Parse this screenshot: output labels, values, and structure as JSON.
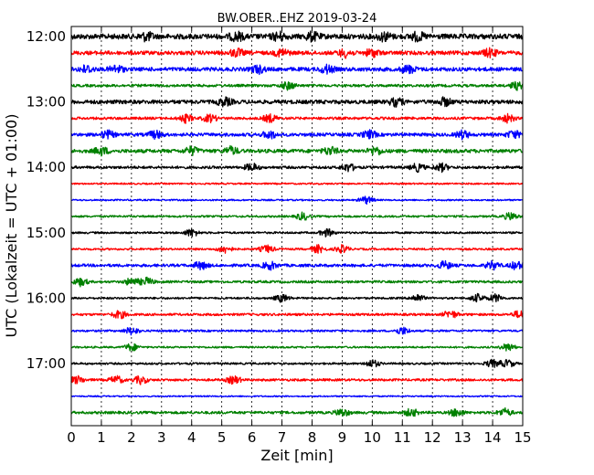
{
  "chart_data": {
    "type": "line",
    "title": "BW.OBER..EHZ 2019-03-24",
    "xlabel": "Zeit  [min]",
    "ylabel": "UTC (Lokalzeit = UTC + 01:00)",
    "xlim": [
      0,
      15
    ],
    "x_ticks": [
      "0",
      "1",
      "2",
      "3",
      "4",
      "5",
      "6",
      "7",
      "8",
      "9",
      "10",
      "11",
      "12",
      "13",
      "14",
      "15"
    ],
    "y_ticks": [
      "12:00",
      "13:00",
      "14:00",
      "15:00",
      "16:00",
      "17:00"
    ],
    "trace_colors": [
      "#000000",
      "#ff0000",
      "#0000ff",
      "#008000"
    ],
    "grid": "vertical dotted",
    "legend": "none",
    "series": [
      {
        "start": "12:00",
        "color": "#000000",
        "amplitude": 0.4,
        "bursts": [
          2.5,
          5.5,
          6.9,
          8.0,
          10.4,
          11.5
        ]
      },
      {
        "start": "12:15",
        "color": "#ff0000",
        "amplitude": 0.3,
        "bursts": [
          5.5,
          7.0,
          9.1,
          10.0,
          13.9
        ]
      },
      {
        "start": "12:30",
        "color": "#0000ff",
        "amplitude": 0.3,
        "bursts": [
          0.5,
          1.5,
          6.2,
          8.5,
          11.2
        ]
      },
      {
        "start": "12:45",
        "color": "#008000",
        "amplitude": 0.2,
        "bursts": [
          7.2,
          14.8
        ]
      },
      {
        "start": "13:00",
        "color": "#000000",
        "amplitude": 0.3,
        "bursts": [
          5.1,
          10.8,
          12.4
        ]
      },
      {
        "start": "13:15",
        "color": "#ff0000",
        "amplitude": 0.2,
        "bursts": [
          3.8,
          4.6,
          6.6,
          14.5
        ]
      },
      {
        "start": "13:30",
        "color": "#0000ff",
        "amplitude": 0.25,
        "bursts": [
          1.2,
          2.8,
          6.6,
          9.9,
          13.0,
          14.7
        ]
      },
      {
        "start": "13:45",
        "color": "#008000",
        "amplitude": 0.28,
        "bursts": [
          1.0,
          4.0,
          5.3,
          8.6,
          10.1
        ]
      },
      {
        "start": "14:00",
        "color": "#000000",
        "amplitude": 0.2,
        "bursts": [
          6.0,
          9.2,
          11.5,
          12.3
        ]
      },
      {
        "start": "14:15",
        "color": "#ff0000",
        "amplitude": 0.12,
        "bursts": []
      },
      {
        "start": "14:30",
        "color": "#0000ff",
        "amplitude": 0.12,
        "bursts": [
          9.8
        ]
      },
      {
        "start": "14:45",
        "color": "#008000",
        "amplitude": 0.15,
        "bursts": [
          7.7,
          14.6
        ]
      },
      {
        "start": "15:00",
        "color": "#000000",
        "amplitude": 0.15,
        "bursts": [
          4.0,
          8.5
        ]
      },
      {
        "start": "15:15",
        "color": "#ff0000",
        "amplitude": 0.15,
        "bursts": [
          5.1,
          6.5,
          8.2,
          9.0
        ]
      },
      {
        "start": "15:30",
        "color": "#0000ff",
        "amplitude": 0.22,
        "bursts": [
          4.3,
          6.6,
          12.4,
          14.0,
          14.8
        ]
      },
      {
        "start": "15:45",
        "color": "#008000",
        "amplitude": 0.18,
        "bursts": [
          0.3,
          2.0,
          2.5
        ]
      },
      {
        "start": "16:00",
        "color": "#000000",
        "amplitude": 0.15,
        "bursts": [
          7.0,
          11.5,
          13.5,
          14.1
        ]
      },
      {
        "start": "16:15",
        "color": "#ff0000",
        "amplitude": 0.18,
        "bursts": [
          1.6,
          12.6,
          14.9
        ]
      },
      {
        "start": "16:30",
        "color": "#0000ff",
        "amplitude": 0.15,
        "bursts": [
          2.0,
          11.0
        ]
      },
      {
        "start": "16:45",
        "color": "#008000",
        "amplitude": 0.14,
        "bursts": [
          2.0,
          14.5
        ]
      },
      {
        "start": "17:00",
        "color": "#000000",
        "amplitude": 0.15,
        "bursts": [
          10.0,
          14.0,
          14.5
        ]
      },
      {
        "start": "17:15",
        "color": "#ff0000",
        "amplitude": 0.18,
        "bursts": [
          0.2,
          1.5,
          2.3,
          5.4
        ]
      },
      {
        "start": "17:30",
        "color": "#0000ff",
        "amplitude": 0.1,
        "bursts": []
      },
      {
        "start": "17:45",
        "color": "#008000",
        "amplitude": 0.2,
        "bursts": [
          9.0,
          11.3,
          12.8,
          14.4
        ]
      }
    ]
  }
}
